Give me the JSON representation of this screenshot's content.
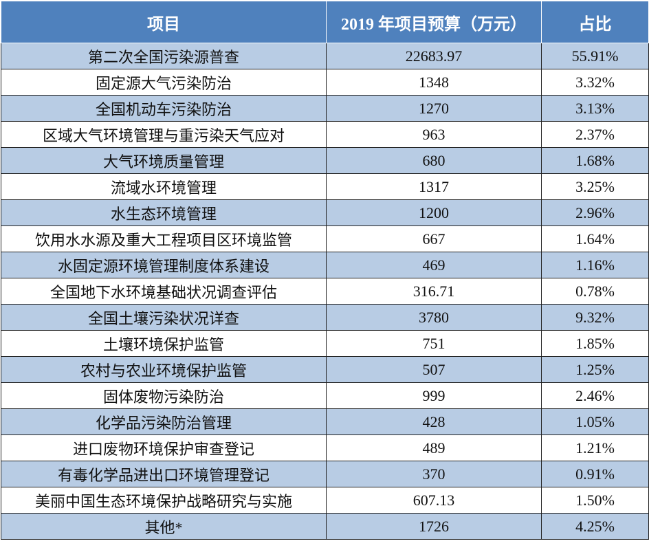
{
  "table": {
    "headers": [
      "项目",
      "2019 年项目预算（万元）",
      "占比"
    ],
    "rows": [
      [
        "第二次全国污染源普查",
        "22683.97",
        "55.91%"
      ],
      [
        "固定源大气污染防治",
        "1348",
        "3.32%"
      ],
      [
        "全国机动车污染防治",
        "1270",
        "3.13%"
      ],
      [
        "区域大气环境管理与重污染天气应对",
        "963",
        "2.37%"
      ],
      [
        "大气环境质量管理",
        "680",
        "1.68%"
      ],
      [
        "流域水环境管理",
        "1317",
        "3.25%"
      ],
      [
        "水生态环境管理",
        "1200",
        "2.96%"
      ],
      [
        "饮用水水源及重大工程项目区环境监管",
        "667",
        "1.64%"
      ],
      [
        "水固定源环境管理制度体系建设",
        "469",
        "1.16%"
      ],
      [
        "全国地下水环境基础状况调查评估",
        "316.71",
        "0.78%"
      ],
      [
        "全国土壤污染状况详查",
        "3780",
        "9.32%"
      ],
      [
        "土壤环境保护监管",
        "751",
        "1.85%"
      ],
      [
        "农村与农业环境保护监管",
        "507",
        "1.25%"
      ],
      [
        "固体废物污染防治",
        "999",
        "2.46%"
      ],
      [
        "化学品污染防治管理",
        "428",
        "1.05%"
      ],
      [
        "进口废物环境保护审查登记",
        "489",
        "1.21%"
      ],
      [
        "有毒化学品进出口环境管理登记",
        "370",
        "0.91%"
      ],
      [
        "美丽中国生态环境保护战略研究与实施",
        "607.13",
        "1.50%"
      ],
      [
        "其他*",
        "1726",
        "4.25%"
      ]
    ]
  },
  "colors": {
    "header_bg": "#4f81bd",
    "header_text": "#ffffff",
    "band": "#b8cce4",
    "white": "#ffffff",
    "border": "#1f1f1f"
  }
}
